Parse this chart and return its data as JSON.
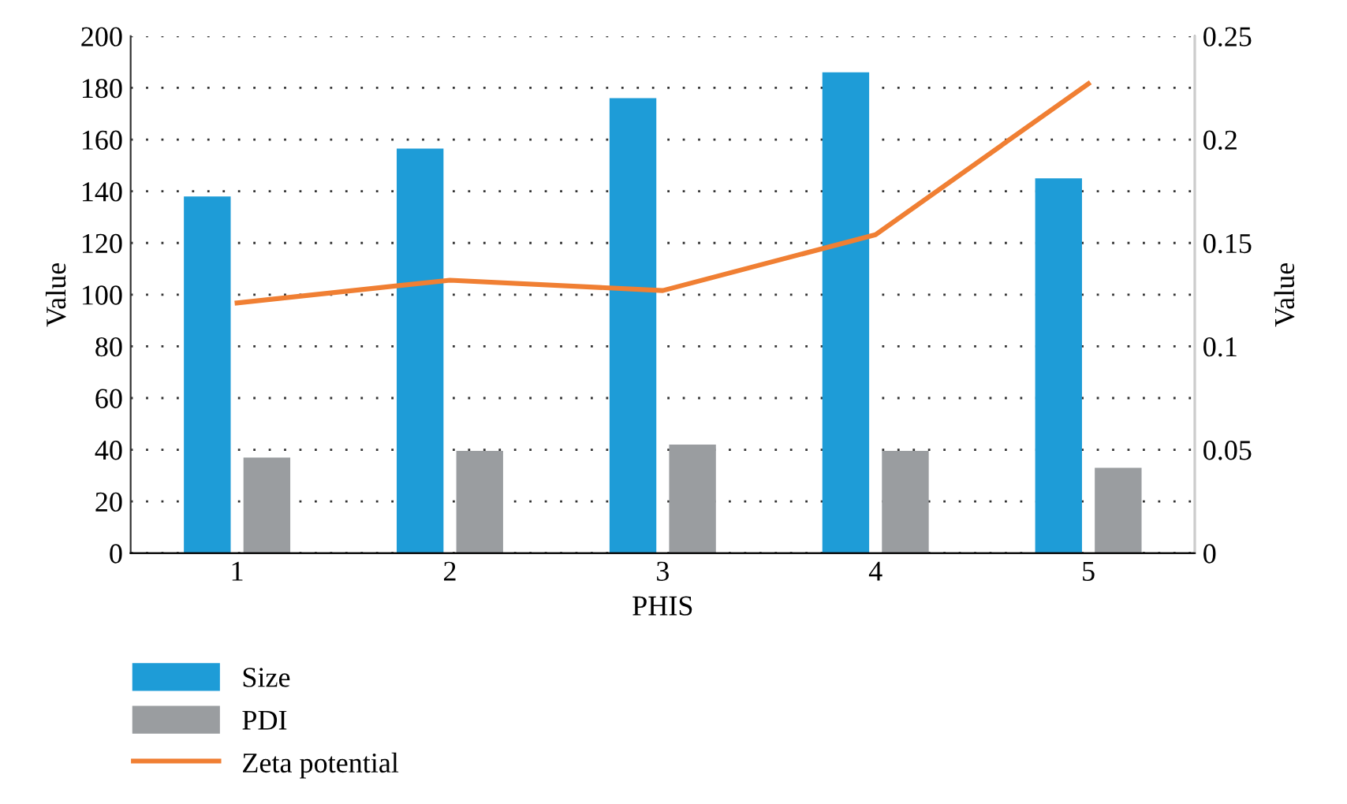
{
  "chart_data": {
    "type": "bar",
    "xlabel": "PHIS",
    "ylabel": "Value",
    "y2label": "Value",
    "categories": [
      "1",
      "2",
      "3",
      "4",
      "5"
    ],
    "series": [
      {
        "name": "Size",
        "color": "#1e9cd7",
        "values": [
          138,
          156.5,
          176,
          186,
          145
        ]
      },
      {
        "name": "PDI",
        "color": "#9a9da0",
        "values": [
          37,
          39.6,
          42,
          39.6,
          33
        ]
      },
      {
        "name": "Zeta potential",
        "type": "line",
        "axis": "y2",
        "color": "#f07f33",
        "values": [
          0.121,
          0.132,
          0.127,
          0.154,
          0.227
        ]
      }
    ],
    "ylim": [
      0,
      200
    ],
    "yticks": [
      0,
      20,
      40,
      60,
      80,
      100,
      120,
      140,
      160,
      180,
      200
    ],
    "y2lim": [
      0,
      0.25
    ],
    "y2ticks": [
      0,
      0.05,
      0.1,
      0.15,
      0.2,
      0.25
    ],
    "grid": "y",
    "legend": "bottom left",
    "marker": "none",
    "line_style": "solid"
  }
}
